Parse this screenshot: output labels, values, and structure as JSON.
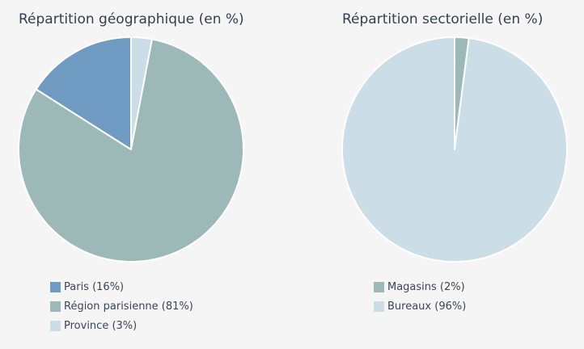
{
  "chart_data": [
    {
      "type": "pie",
      "title": "Répartition géographique (en %)",
      "slices": [
        {
          "label": "Paris (16%)",
          "value": 16,
          "color": "#6f9bc2"
        },
        {
          "label": "Région parisienne (81%)",
          "value": 81,
          "color": "#9cb9b7"
        },
        {
          "label": "Province (3%)",
          "value": 3,
          "color": "#cbdde6"
        }
      ],
      "draw_order": [
        2,
        1,
        0
      ],
      "legend_position": "bottom"
    },
    {
      "type": "pie",
      "title": "Répartition sectorielle (en %)",
      "slices": [
        {
          "label": "Magasins (2%)",
          "value": 2,
          "color": "#9cb9b7"
        },
        {
          "label": "Bureaux (96%)",
          "value": 96,
          "color": "#cbdde6"
        }
      ],
      "draw_order": [
        0,
        1
      ],
      "legend_position": "bottom"
    }
  ]
}
